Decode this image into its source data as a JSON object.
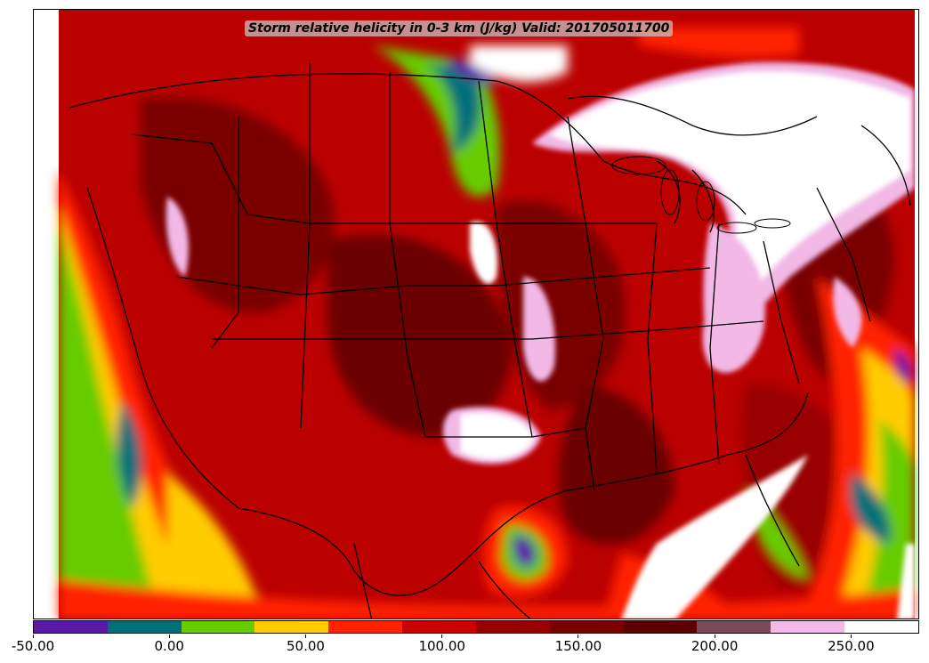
{
  "title": "Storm relative helicity in 0-3 km (J/kg) Valid: 201705011700",
  "colorbar": {
    "min": -50,
    "max": 275,
    "colors": [
      "#5a1aa8",
      "#006f7a",
      "#66cc00",
      "#ffcc00",
      "#ff2200",
      "#cc0000",
      "#990000",
      "#7a0000",
      "#5a0000",
      "#7a4a58",
      "#f2b8e6",
      "#ffffff"
    ],
    "tick_values": [
      -50,
      0,
      50,
      100,
      150,
      200,
      250
    ],
    "tick_labels": [
      "-50.00",
      "0.00",
      "50.00",
      "100.00",
      "150.00",
      "200.00",
      "250.00"
    ]
  },
  "map": {
    "region": "Continental United States",
    "field": "storm relative helicity",
    "background_fill": "#cc0000",
    "high_fill": "#ffffff",
    "low_fill": "#66cc00"
  }
}
